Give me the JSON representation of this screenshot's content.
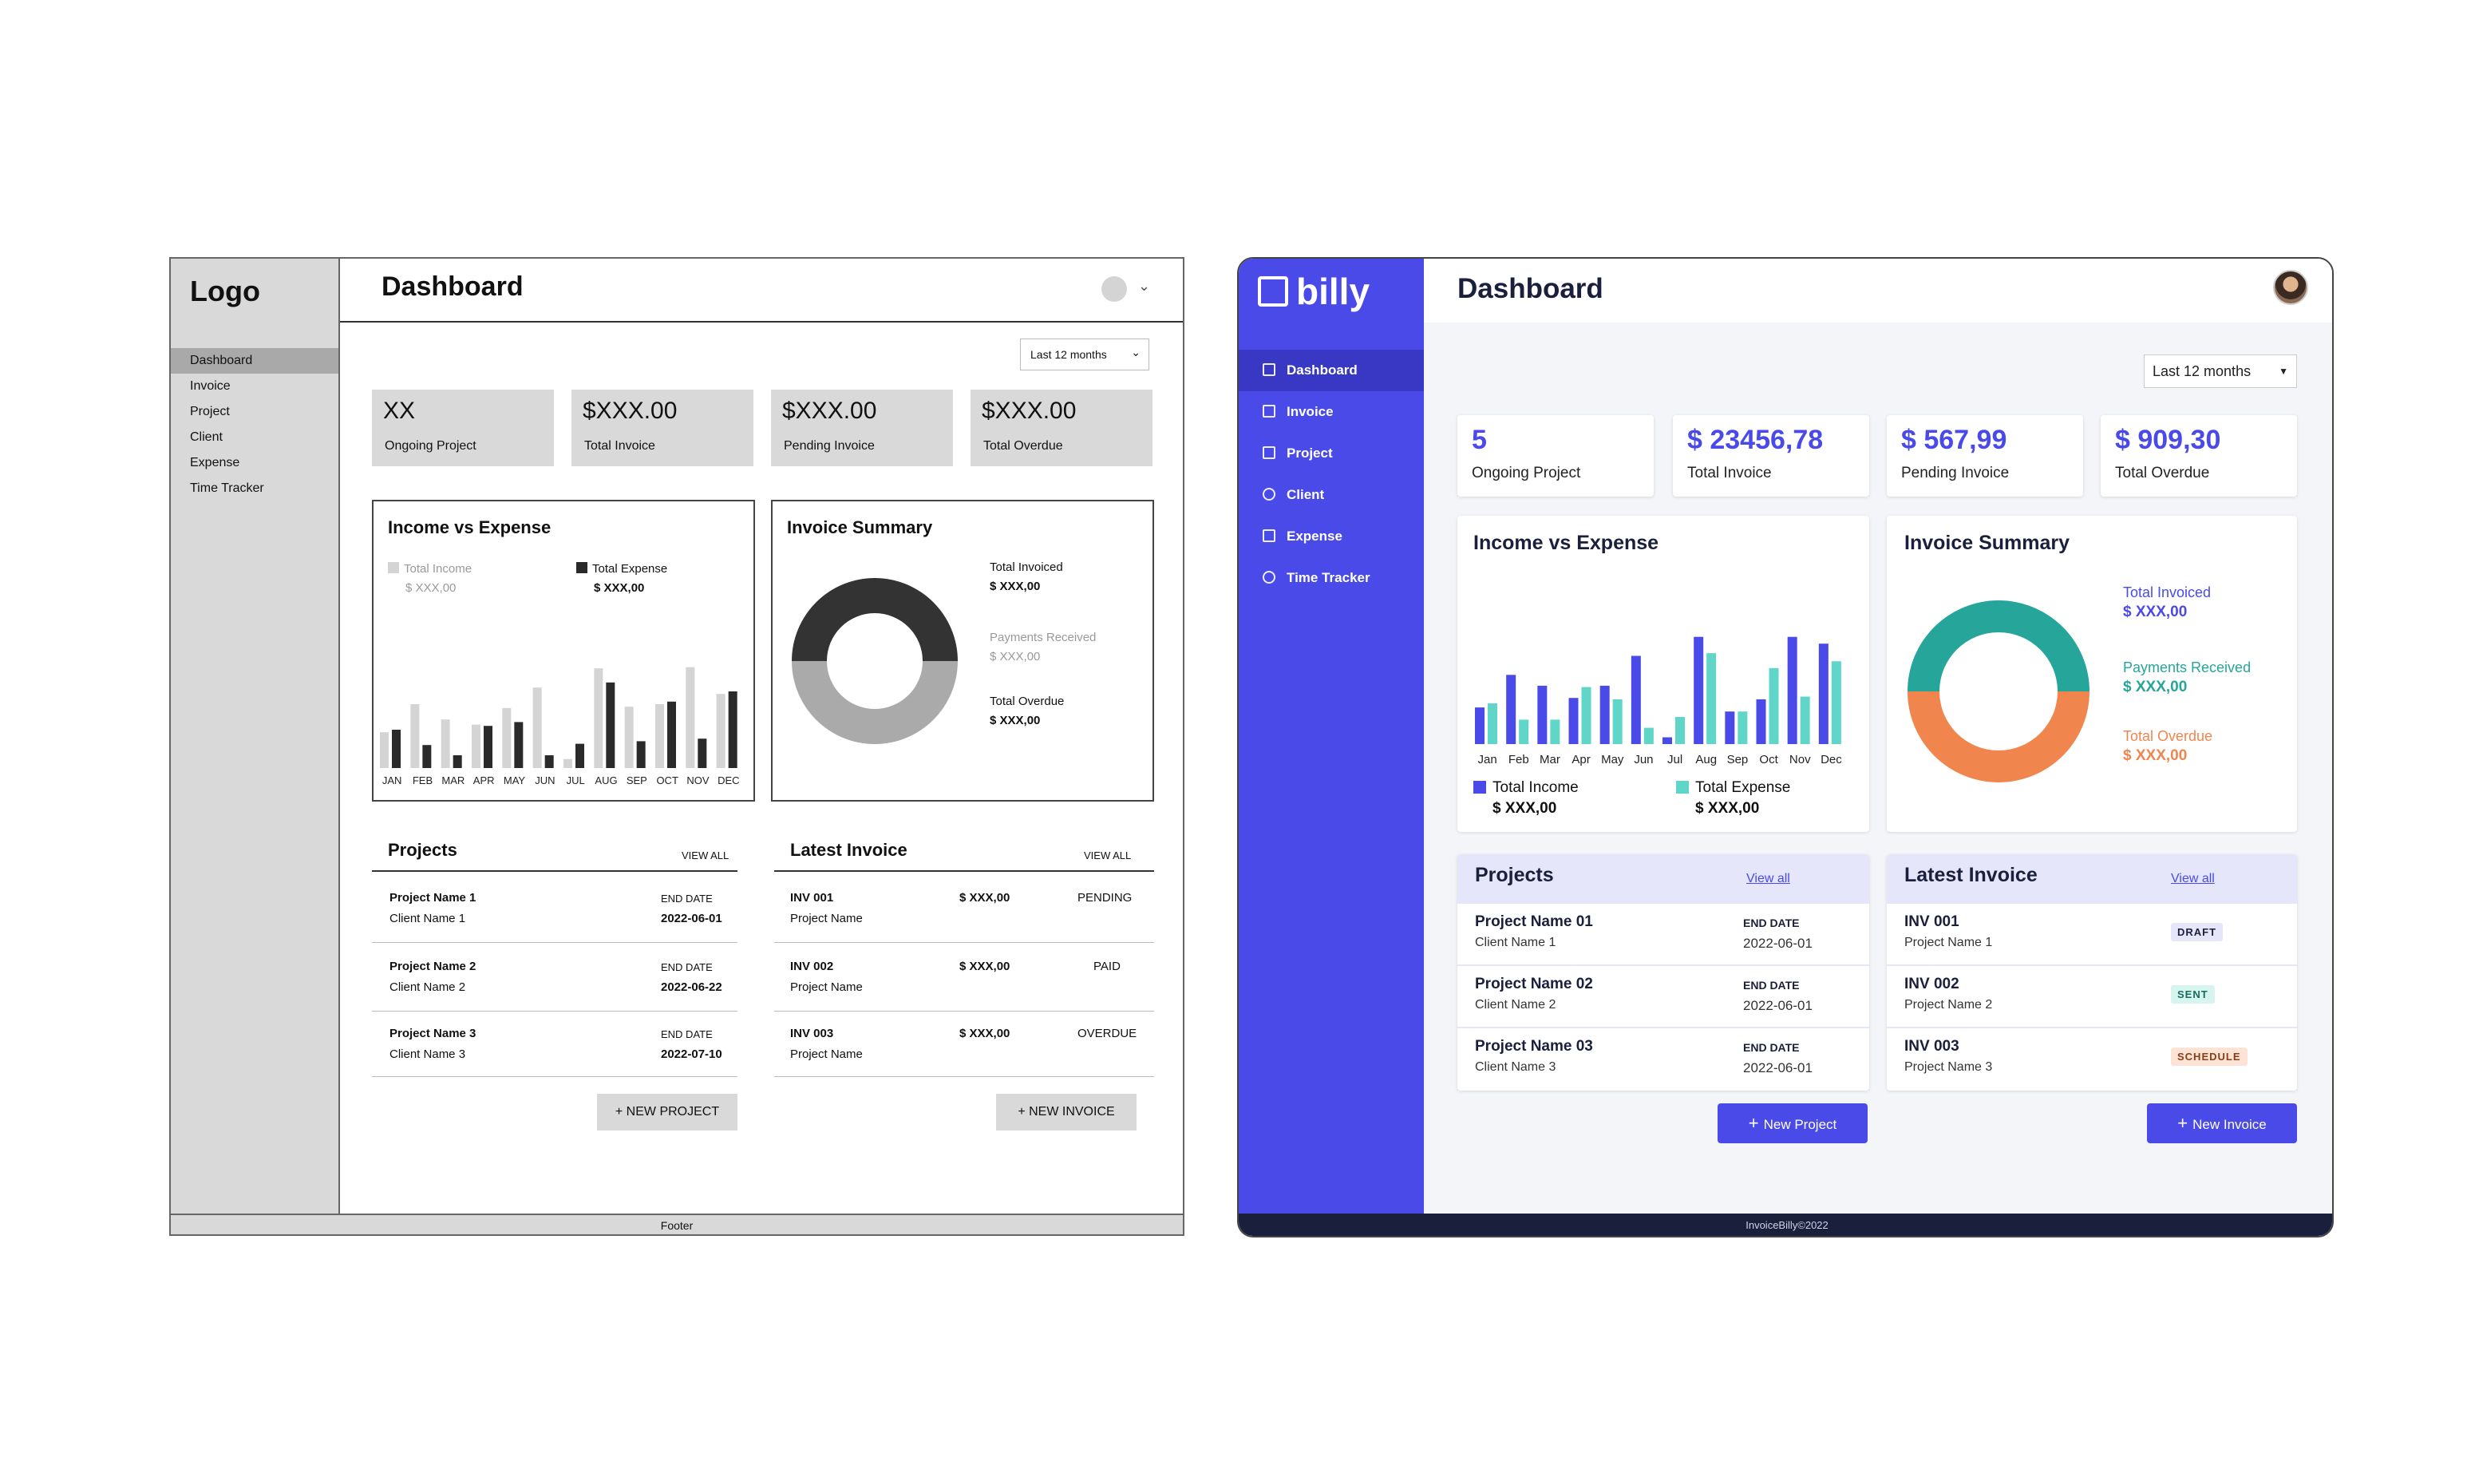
{
  "wireframe": {
    "logo": "Logo",
    "nav": [
      "Dashboard",
      "Invoice",
      "Project",
      "Client",
      "Expense",
      "Time Tracker"
    ],
    "title": "Dashboard",
    "range": "Last 12 months",
    "stats": [
      {
        "value": "XX",
        "label": "Ongoing Project"
      },
      {
        "value": "$XXX.00",
        "label": "Total Invoice"
      },
      {
        "value": "$XXX.00",
        "label": "Pending Invoice"
      },
      {
        "value": "$XXX.00",
        "label": "Total Overdue"
      }
    ],
    "income": {
      "title": "Income vs Expense",
      "legend1": "Total Income",
      "legend1_value": "$ XXX,00",
      "legend2": "Total Expense",
      "legend2_value": "$ XXX,00"
    },
    "summary": {
      "title": "Invoice Summary",
      "a_label": "Total Invoiced",
      "a_value": "$ XXX,00",
      "b_label": "Payments Received",
      "b_value": "$ XXX,00",
      "c_label": "Total Overdue",
      "c_value": "$ XXX,00"
    },
    "projects": {
      "title": "Projects",
      "view_all": "VIEW ALL",
      "end_label": "END DATE",
      "rows": [
        {
          "name": "Project Name 1",
          "client": "Client Name 1",
          "date": "2022-06-01"
        },
        {
          "name": "Project Name 2",
          "client": "Client Name 2",
          "date": "2022-06-22"
        },
        {
          "name": "Project Name 3",
          "client": "Client Name 3",
          "date": "2022-07-10"
        }
      ],
      "button": "+ NEW PROJECT"
    },
    "invoices": {
      "title": "Latest Invoice",
      "view_all": "VIEW ALL",
      "rows": [
        {
          "id": "INV 001",
          "project": "Project Name",
          "amount": "$ XXX,00",
          "status": "PENDING"
        },
        {
          "id": "INV 002",
          "project": "Project Name",
          "amount": "$ XXX,00",
          "status": "PAID"
        },
        {
          "id": "INV 003",
          "project": "Project Name",
          "amount": "$ XXX,00",
          "status": "OVERDUE"
        }
      ],
      "button": "+ NEW INVOICE"
    },
    "footer": "Footer"
  },
  "billy": {
    "brand": "billy",
    "nav": [
      "Dashboard",
      "Invoice",
      "Project",
      "Client",
      "Expense",
      "Time Tracker"
    ],
    "title": "Dashboard",
    "range": "Last 12 months",
    "stats": [
      {
        "value": "5",
        "label": "Ongoing Project"
      },
      {
        "value": "$ 23456,78",
        "label": "Total Invoice"
      },
      {
        "value": "$ 567,99",
        "label": "Pending Invoice"
      },
      {
        "value": "$ 909,30",
        "label": "Total Overdue"
      }
    ],
    "income": {
      "title": "Income vs Expense",
      "legend1": "Total Income",
      "legend1_value": "$ XXX,00",
      "legend2": "Total Expense",
      "legend2_value": "$ XXX,00"
    },
    "summary": {
      "title": "Invoice Summary",
      "a_label": "Total Invoiced",
      "a_value": "$ XXX,00",
      "b_label": "Payments Received",
      "b_value": "$ XXX,00",
      "c_label": "Total Overdue",
      "c_value": "$ XXX,00"
    },
    "projects": {
      "title": "Projects",
      "view_all": "View all",
      "end_label": "END DATE",
      "rows": [
        {
          "name": "Project Name 01",
          "client": "Client Name 1",
          "date": "2022-06-01"
        },
        {
          "name": "Project Name 02",
          "client": "Client Name 2",
          "date": "2022-06-01"
        },
        {
          "name": "Project Name 03",
          "client": "Client Name 3",
          "date": "2022-06-01"
        }
      ],
      "button": "New Project"
    },
    "invoices": {
      "title": "Latest Invoice",
      "view_all": "View all",
      "rows": [
        {
          "id": "INV 001",
          "project": "Project Name 1",
          "status": "DRAFT"
        },
        {
          "id": "INV 002",
          "project": "Project Name 2",
          "status": "SENT"
        },
        {
          "id": "INV 003",
          "project": "Project Name 3",
          "status": "SCHEDULE"
        }
      ],
      "button": "New Invoice"
    },
    "footer": "InvoiceBilly©2022"
  },
  "chart_data": [
    {
      "type": "bar",
      "categories": [
        "JAN",
        "FEB",
        "MAR",
        "APR",
        "MAY",
        "JUN",
        "JUL",
        "AUG",
        "SEP",
        "OCT",
        "NOV",
        "DEC"
      ],
      "series": [
        {
          "name": "Total Income",
          "values": [
            28,
            50,
            38,
            34,
            47,
            63,
            7,
            78,
            48,
            50,
            79,
            58
          ],
          "color": "#d4d4d4"
        },
        {
          "name": "Total Expense",
          "values": [
            30,
            18,
            10,
            33,
            36,
            10,
            19,
            67,
            21,
            52,
            23,
            60
          ],
          "color": "#2a2a2a"
        }
      ],
      "ylim": [
        0,
        100
      ]
    },
    {
      "type": "pie",
      "labels": [
        "Total Invoiced",
        "Payments Received",
        "Total Overdue"
      ],
      "values": [
        50,
        50,
        0
      ],
      "colors": [
        "#333333",
        "#aaaaaa",
        "#aaaaaa"
      ]
    },
    {
      "type": "bar",
      "categories": [
        "Jan",
        "Feb",
        "Mar",
        "Apr",
        "May",
        "Jun",
        "Jul",
        "Aug",
        "Sep",
        "Oct",
        "Nov",
        "Dec"
      ],
      "series": [
        {
          "name": "Total Income",
          "values": [
            27,
            51,
            43,
            34,
            43,
            65,
            5,
            79,
            24,
            33,
            79,
            74
          ],
          "color": "#4a4ae8"
        },
        {
          "name": "Total Expense",
          "values": [
            30,
            18,
            18,
            42,
            33,
            12,
            20,
            67,
            24,
            56,
            35,
            61
          ],
          "color": "#5fd6c8"
        }
      ],
      "ylim": [
        0,
        100
      ]
    },
    {
      "type": "pie",
      "labels": [
        "Total Invoiced",
        "Payments Received",
        "Total Overdue"
      ],
      "values": [
        0,
        50,
        50
      ],
      "colors": [
        "#4a4ae8",
        "#26a59a",
        "#f0854e"
      ]
    }
  ]
}
